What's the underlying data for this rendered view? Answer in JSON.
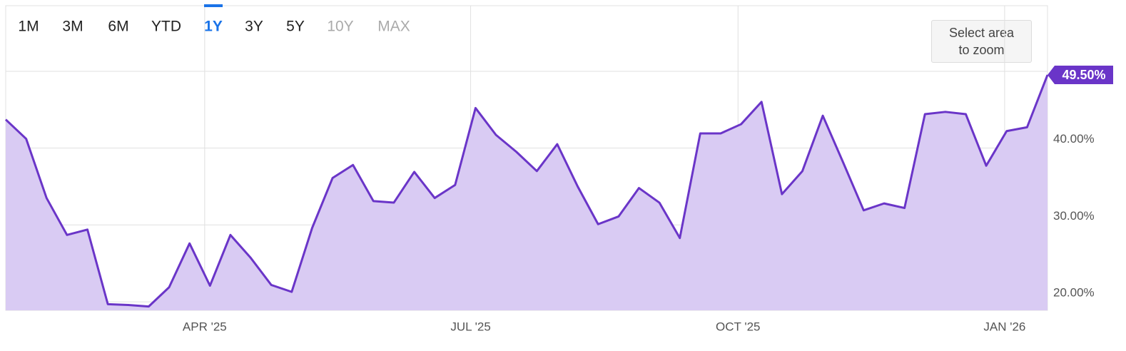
{
  "chart_data": {
    "type": "area",
    "range_buttons": [
      "1M",
      "3M",
      "6M",
      "YTD",
      "1Y",
      "3Y",
      "5Y",
      "10Y",
      "MAX"
    ],
    "selected_button": 4,
    "disabled_buttons": [
      7,
      8
    ],
    "zoom_hint": "Select area to zoom",
    "values": [
      43.7,
      41.2,
      33.5,
      28.7,
      29.4,
      19.7,
      19.6,
      19.4,
      21.9,
      27.6,
      22.1,
      28.7,
      25.7,
      22.2,
      21.3,
      29.6,
      36.1,
      37.8,
      33.1,
      32.9,
      36.9,
      33.5,
      35.2,
      45.2,
      41.7,
      39.5,
      37.0,
      40.5,
      35.0,
      30.1,
      31.1,
      34.8,
      32.9,
      28.3,
      41.9,
      41.9,
      43.1,
      46.0,
      34.0,
      37.0,
      44.2,
      38.1,
      31.9,
      32.8,
      32.2,
      44.4,
      44.7,
      44.4,
      37.7,
      42.2,
      42.7,
      49.5
    ],
    "last_value_label": "49.50%",
    "color": "#6a35c8",
    "fill_color": "#d9cbf3",
    "xlim": [
      0,
      51
    ],
    "xticks": [
      {
        "value": 9.74,
        "label": "APR '25"
      },
      {
        "value": 22.76,
        "label": "JUL '25"
      },
      {
        "value": 35.85,
        "label": "OCT '25"
      },
      {
        "value": 48.9,
        "label": "JAN '26"
      }
    ],
    "ylim": [
      18.9,
      58.5
    ],
    "yticks": [
      {
        "value": 20,
        "label": "20.00%"
      },
      {
        "value": 30,
        "label": "30.00%"
      },
      {
        "value": 40,
        "label": "40.00%"
      }
    ],
    "grid": true
  }
}
